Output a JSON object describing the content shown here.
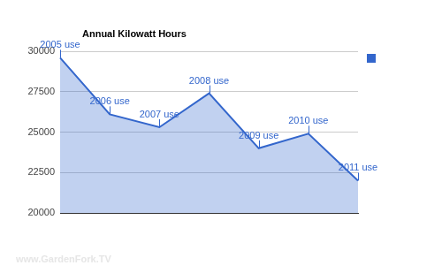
{
  "chart_data": {
    "type": "line",
    "title": "Annual Kilowatt Hours",
    "categories": [
      "2005 use",
      "2006 use",
      "2007 use",
      "2008 use",
      "2009 use",
      "2010 use",
      "2011 use"
    ],
    "values": [
      29600,
      26100,
      25300,
      27400,
      24000,
      24900,
      22000
    ],
    "color": "#3366cc",
    "ylim": [
      20000,
      30000
    ],
    "yticks": [
      20000,
      22500,
      25000,
      27500,
      30000
    ],
    "grid": true,
    "legend": "top-right",
    "tick_labels": "y",
    "annotations": [
      "www.GardenFork.TV"
    ]
  }
}
